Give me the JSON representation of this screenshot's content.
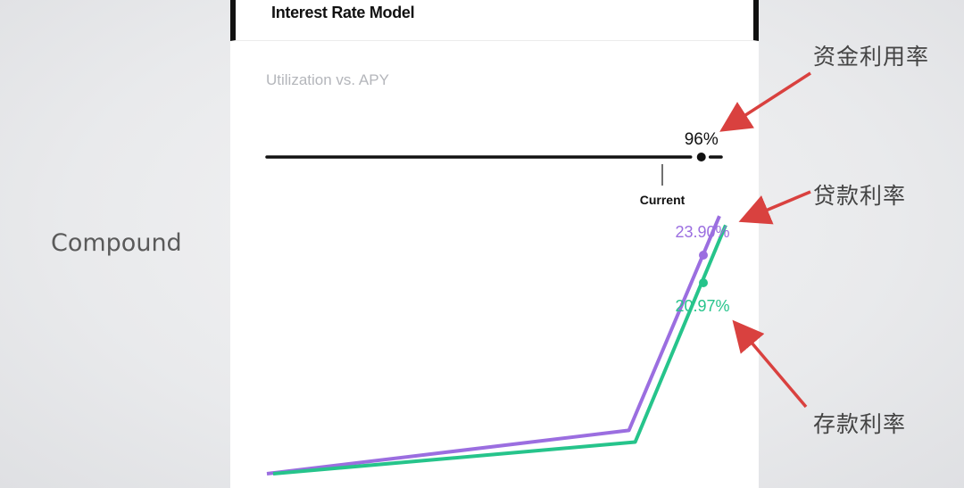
{
  "side_label": "Compound",
  "card": {
    "title": "Interest Rate Model",
    "subtitle": "Utilization vs. APY"
  },
  "annotations": {
    "utilization": "资金利用率",
    "borrow": "贷款利率",
    "supply": "存款利率"
  },
  "colors": {
    "borrow": "#9b6ee0",
    "supply": "#26c48b",
    "arrow": "#d9413f",
    "axis": "#111111"
  },
  "chart_data": {
    "type": "line",
    "title": "Utilization vs. APY",
    "xlabel": "",
    "ylabel": "",
    "xlim": [
      0,
      100
    ],
    "ylim": [
      0,
      30
    ],
    "current_utilization": 96,
    "current_label": "Current",
    "utilization_label": "96%",
    "series": [
      {
        "key": "borrow",
        "x": [
          0,
          80,
          100
        ],
        "y": [
          0,
          4.8,
          28.5
        ],
        "current_value": 23.9,
        "current_label": "23.90%"
      },
      {
        "key": "supply",
        "x": [
          0,
          80,
          100
        ],
        "y": [
          0,
          3.5,
          27.5
        ],
        "current_value": 20.97,
        "current_label": "20.97%"
      }
    ]
  }
}
